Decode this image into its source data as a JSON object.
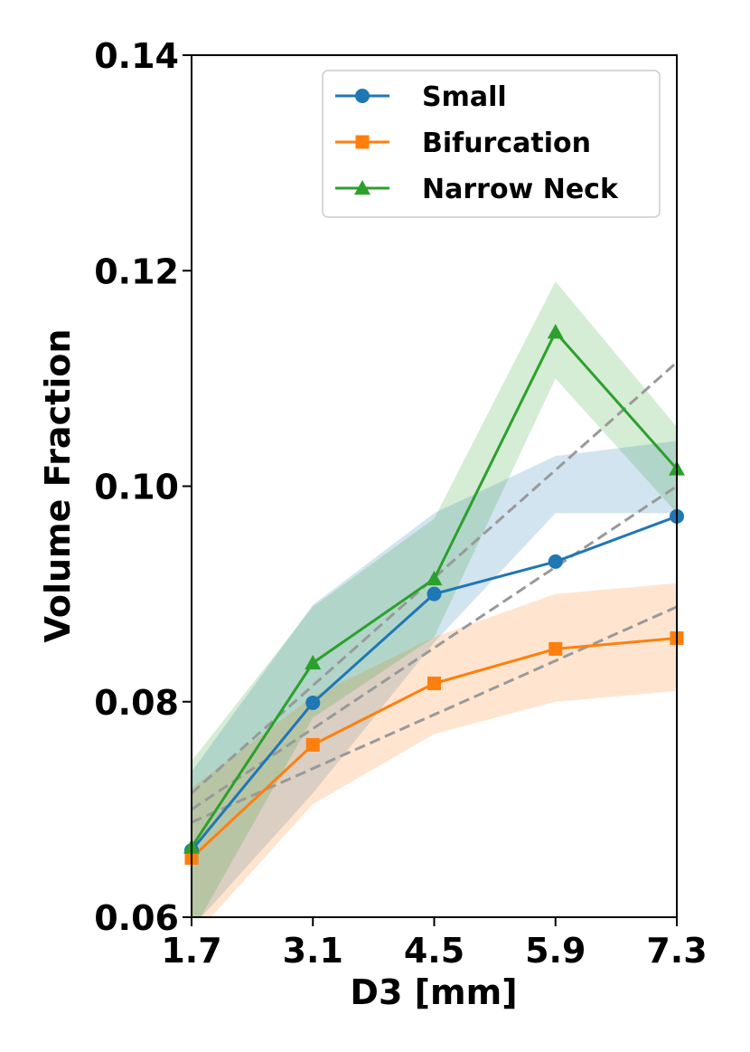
{
  "chart_data": {
    "type": "line",
    "xlabel": "D3 [mm]",
    "ylabel": "Volume Fraction",
    "x": [
      1.7,
      3.1,
      4.5,
      5.9,
      7.3
    ],
    "x_tick_labels": [
      "1.7",
      "3.1",
      "4.5",
      "5.9",
      "7.3"
    ],
    "xlim": [
      1.7,
      7.3
    ],
    "ylim": [
      0.06,
      0.14
    ],
    "y_ticks": [
      0.06,
      0.08,
      0.1,
      0.12,
      0.14
    ],
    "y_tick_labels": [
      "0.06",
      "0.08",
      "0.10",
      "0.12",
      "0.14"
    ],
    "grid": false,
    "legend_position": "top-right",
    "series": [
      {
        "name": "Small",
        "color": "#1f77b4",
        "marker": "circle",
        "values": [
          0.0662,
          0.0799,
          0.09,
          0.093,
          0.0972
        ],
        "band_upper": [
          0.0735,
          0.089,
          0.0975,
          0.1028,
          0.1042
        ],
        "band_lower": [
          0.059,
          0.0715,
          0.0855,
          0.0975,
          0.0975
        ],
        "trend": [
          0.07,
          0.0775,
          0.085,
          0.0925,
          0.1
        ]
      },
      {
        "name": "Bifurcation",
        "color": "#ff7f0e",
        "marker": "square",
        "values": [
          0.0655,
          0.076,
          0.0817,
          0.0849,
          0.0859
        ],
        "band_upper": [
          0.072,
          0.0805,
          0.086,
          0.09,
          0.091
        ],
        "band_lower": [
          0.058,
          0.0705,
          0.077,
          0.08,
          0.081
        ],
        "trend": [
          0.0688,
          0.0738,
          0.0788,
          0.0838,
          0.0888
        ]
      },
      {
        "name": "Narrow Neck",
        "color": "#2ca02c",
        "marker": "triangle",
        "values": [
          0.0665,
          0.0836,
          0.0914,
          0.1143,
          0.1016
        ],
        "band_upper": [
          0.0745,
          0.0888,
          0.097,
          0.119,
          0.1055
        ],
        "band_lower": [
          0.0585,
          0.0785,
          0.086,
          0.11,
          0.0975
        ],
        "trend": [
          0.0715,
          0.0815,
          0.0915,
          0.1015,
          0.1115
        ]
      }
    ],
    "trend_color": "#999999"
  }
}
